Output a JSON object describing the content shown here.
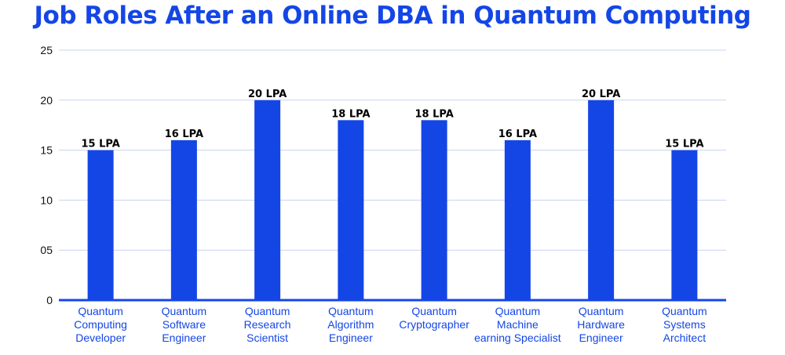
{
  "colors": {
    "bar": "#1446e6",
    "title": "#1446e6",
    "grid": "#c9d3f2",
    "axis": "#1446e6",
    "category_text": "#1446e6"
  },
  "chart_data": {
    "type": "bar",
    "title": "Job Roles After an Online DBA in Quantum Computing",
    "xlabel": "",
    "ylabel": "",
    "ylim": [
      0,
      25
    ],
    "yticks": [
      0,
      5,
      10,
      15,
      20,
      25
    ],
    "ytick_labels": [
      "0",
      "05",
      "10",
      "15",
      "20",
      "25"
    ],
    "grid": true,
    "legend": "none",
    "categories": [
      [
        "Quantum",
        "Computing",
        "Developer"
      ],
      [
        "Quantum",
        "Software",
        "Engineer"
      ],
      [
        "Quantum",
        "Research",
        "Scientist"
      ],
      [
        "Quantum",
        "Algorithm",
        "Engineer"
      ],
      [
        "Quantum",
        "Cryptographer"
      ],
      [
        "Quantum",
        "Machine",
        "earning Specialist"
      ],
      [
        "Quantum",
        "Hardware",
        "Engineer"
      ],
      [
        "Quantum",
        "Systems",
        "Architect"
      ]
    ],
    "values": [
      15,
      16,
      20,
      18,
      18,
      16,
      20,
      15
    ],
    "data_labels": [
      "15 LPA",
      "16 LPA",
      "20 LPA",
      "18 LPA",
      "18 LPA",
      "16 LPA",
      "20 LPA",
      "15 LPA"
    ]
  }
}
